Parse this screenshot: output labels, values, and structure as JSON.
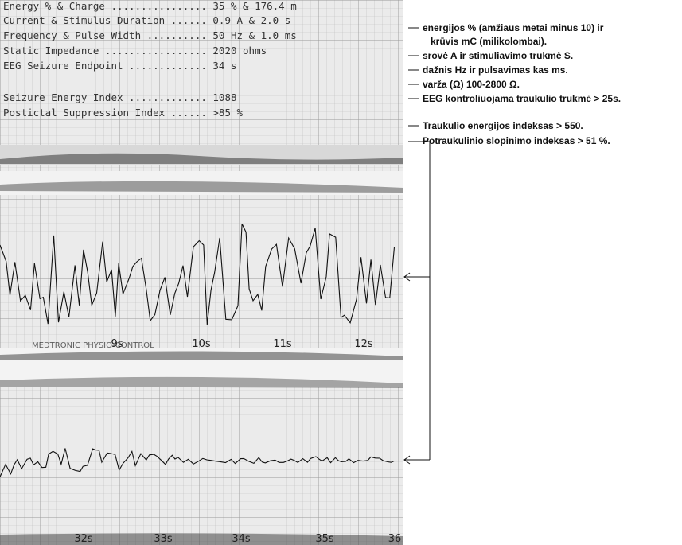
{
  "printout": {
    "rows": [
      "Energy % & Charge ................ 35 % & 176.4 m",
      "Current & Stimulus Duration ...... 0.9 A & 2.0 s",
      "Frequency & Pulse Width .......... 50 Hz & 1.0 ms",
      "Static Impedance ................. 2020 ohms",
      "EEG Seizure Endpoint ............. 34 s",
      "Seizure Energy Index ............. 1088",
      "Postictal Suppression Index ...... >85 %"
    ],
    "strip1_times": [
      "9s",
      "10s",
      "11s",
      "12s"
    ],
    "strip1_brand": "MEDTRONIC PHYSIO-CONTROL",
    "strip2_times": [
      "32s",
      "33s",
      "34s",
      "35s",
      "36"
    ]
  },
  "annotations": [
    "energijos % (amžiaus metai minus 10) ir",
    "krūvis mC (milikolombai).",
    "srovė A ir stimuliavimo trukmė S.",
    "dažnis Hz ir pulsavimas kas ms.",
    "varža (Ω) 100-2800 Ω.",
    "EEG kontroliuojama traukulio trukmė > 25s.",
    "Traukulio energijos indeksas  > 550.",
    "Potraukulinio slopinimo indeksas > 51 %."
  ]
}
